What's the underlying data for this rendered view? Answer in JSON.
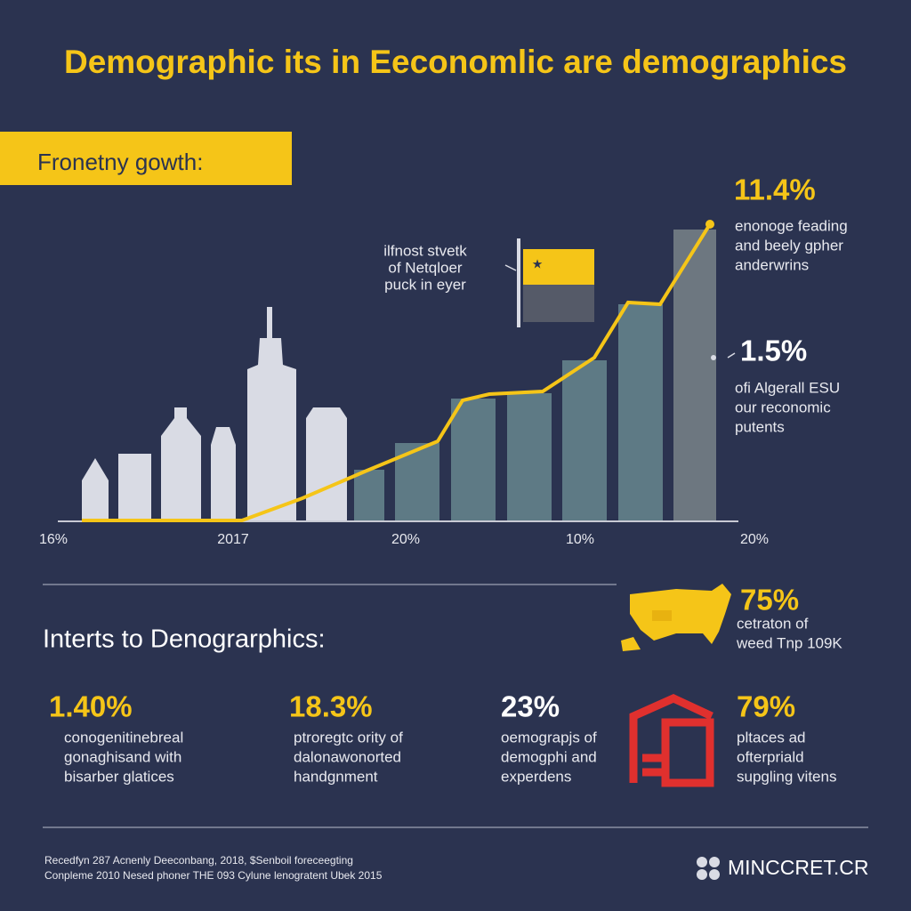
{
  "title": "Demographic its in Eeconomlic are demographics",
  "banner": "Fronetny gowth:",
  "callout": [
    "ilfnost stvetk",
    "of Netqloer",
    "puck in eyer"
  ],
  "axis_labels": [
    "16%",
    "2017",
    "20%",
    "10%",
    "20%"
  ],
  "stats_right": [
    {
      "value": "11.4%",
      "lines": [
        "enonoge feading",
        "and beely gpher",
        "anderwrins"
      ]
    },
    {
      "value": "1.5%",
      "lines": [
        "ofi Algerall ESU",
        "our reconomic",
        "putents"
      ]
    }
  ],
  "section_title": "Interts to Denograrphics:",
  "map_stat": {
    "value": "75%",
    "lines": [
      "cetraton of",
      "weed Tnp 109K"
    ]
  },
  "stats": [
    {
      "value": "1.40%",
      "lines": [
        "conogenitinebreal",
        "gonaghisand with",
        "bisarber glatices"
      ]
    },
    {
      "value": "18.3%",
      "lines": [
        "ptroregtc ority of",
        "dalonawonorted",
        "handgnment"
      ]
    },
    {
      "value": "23%",
      "lines": [
        "oemograpjs of",
        "demogphi and",
        "experdens"
      ]
    },
    {
      "value": "79%",
      "lines": [
        "pltaces ad",
        "ofterpriald",
        "supgling vitens"
      ]
    }
  ],
  "footer": {
    "lines": [
      "Recedfyn 287 Acnenly Deeconbang, 2018, $Senboil foreceegting",
      "Conpleme 2010 Nesed phoner THE 093 Cylune lenogratent Ubek 2015"
    ],
    "brand": "MINCCRET.CR"
  }
}
